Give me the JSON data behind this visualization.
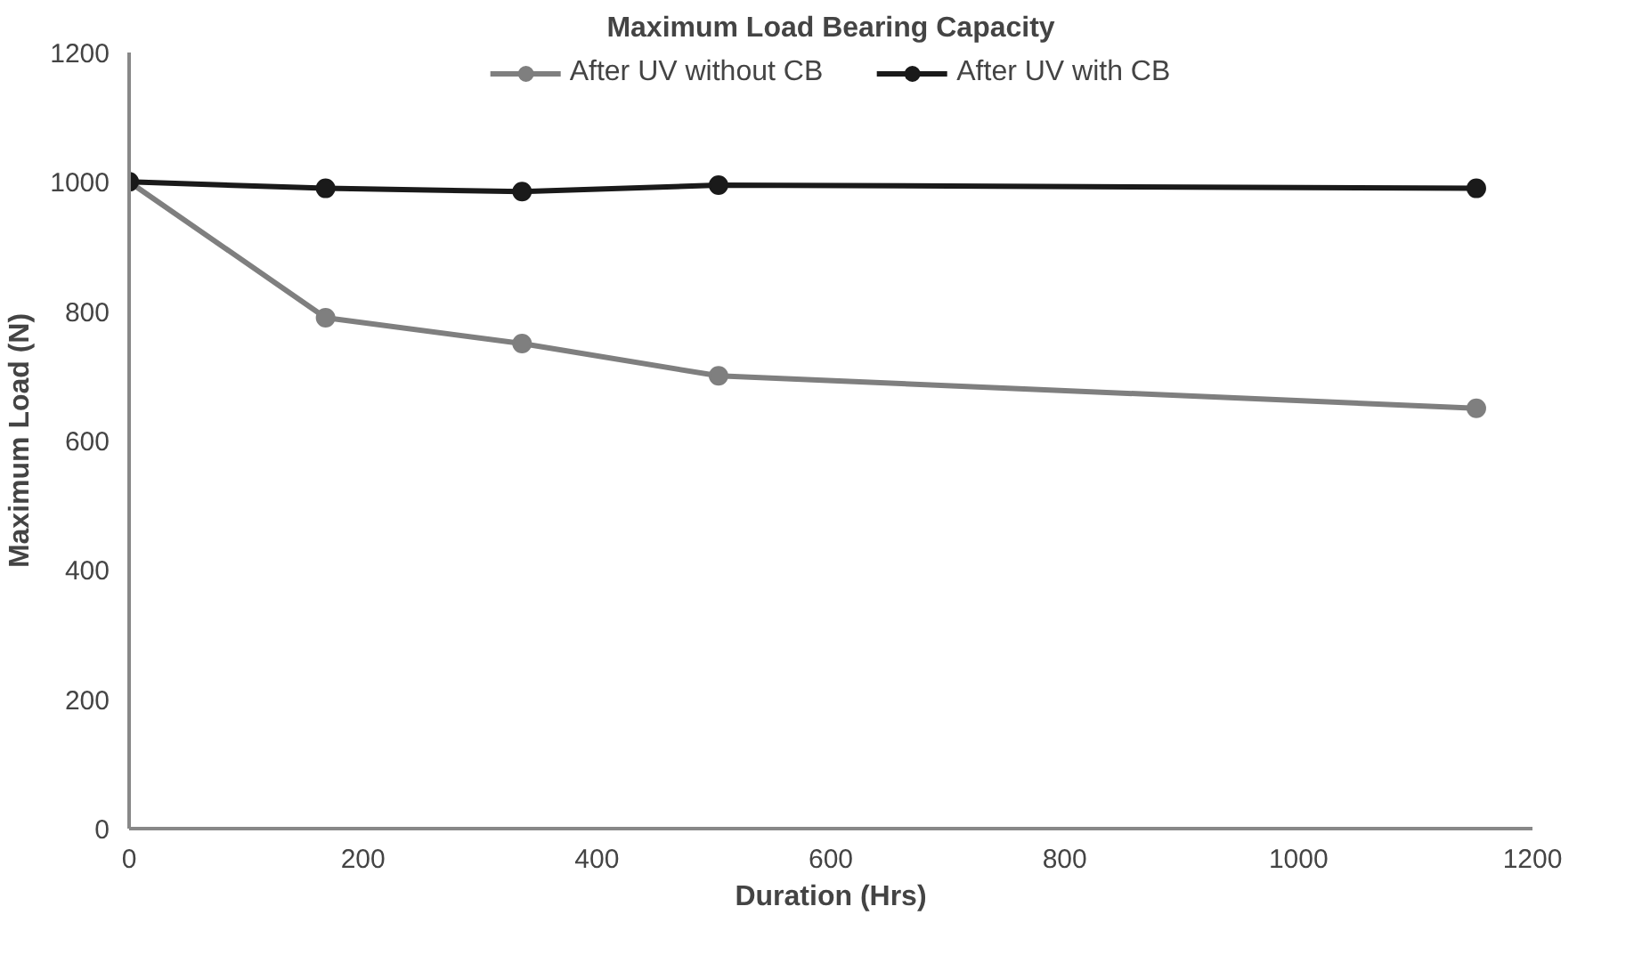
{
  "chart_data": {
    "type": "line",
    "title": "Maximum Load Bearing Capacity",
    "xlabel": "Duration (Hrs)",
    "ylabel": "Maximum Load (N)",
    "x": [
      0,
      168,
      336,
      504,
      1152
    ],
    "series": [
      {
        "name": "After UV without CB",
        "color": "#7f7f7f",
        "values": [
          1000,
          790,
          750,
          700,
          650
        ]
      },
      {
        "name": "After UV with CB",
        "color": "#1a1a1a",
        "values": [
          1000,
          990,
          985,
          995,
          990
        ]
      }
    ],
    "xlim": [
      0,
      1200
    ],
    "xticks": [
      0,
      200,
      400,
      600,
      800,
      1000,
      1200
    ],
    "ylim": [
      0,
      1200
    ],
    "yticks": [
      0,
      200,
      400,
      600,
      800,
      1000,
      1200
    ],
    "grid": false,
    "legend": "top",
    "marker": "circle",
    "line_style": "solid"
  }
}
